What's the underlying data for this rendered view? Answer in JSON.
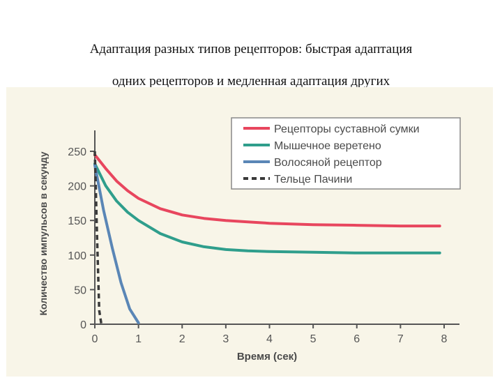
{
  "slide": {
    "caption_line1": "Адаптация разных типов рецепторов: быстрая адаптация",
    "caption_line2": "одних рецепторов и медленная адаптация других"
  },
  "chart_data": {
    "type": "line",
    "xlabel": "Время (сек)",
    "ylabel": "Количество импульсов в секунду",
    "xlim": [
      0,
      8
    ],
    "ylim": [
      0,
      250
    ],
    "xticks": [
      0,
      1,
      2,
      3,
      4,
      5,
      6,
      7,
      8
    ],
    "yticks": [
      0,
      50,
      100,
      150,
      200,
      250
    ],
    "grid": false,
    "legend_position": "top-right",
    "series": [
      {
        "name": "Рецепторы суставной сумки",
        "color": "#e8465e",
        "style": "solid",
        "x": [
          0,
          0.25,
          0.5,
          0.75,
          1,
          1.5,
          2,
          2.5,
          3,
          3.5,
          4,
          5,
          6,
          7,
          7.9
        ],
        "y": [
          245,
          225,
          207,
          193,
          182,
          167,
          158,
          153,
          150,
          148,
          146,
          144,
          143,
          142,
          142
        ]
      },
      {
        "name": "Мышечное веретено",
        "color": "#2f9e8c",
        "style": "solid",
        "x": [
          0,
          0.25,
          0.5,
          0.75,
          1,
          1.5,
          2,
          2.5,
          3,
          3.5,
          4,
          5,
          6,
          7,
          7.9
        ],
        "y": [
          232,
          200,
          178,
          162,
          150,
          131,
          119,
          112,
          108,
          106,
          105,
          104,
          103,
          103,
          103
        ]
      },
      {
        "name": "Волосяной рецептор",
        "color": "#5a86b6",
        "style": "solid",
        "x": [
          0,
          0.2,
          0.4,
          0.6,
          0.8,
          1
        ],
        "y": [
          230,
          165,
          110,
          60,
          22,
          2
        ]
      },
      {
        "name": "Тельце Пачини",
        "color": "#3a3a3a",
        "style": "dashed",
        "x": [
          0,
          0.05,
          0.1,
          0.15
        ],
        "y": [
          250,
          130,
          20,
          0
        ]
      }
    ]
  }
}
